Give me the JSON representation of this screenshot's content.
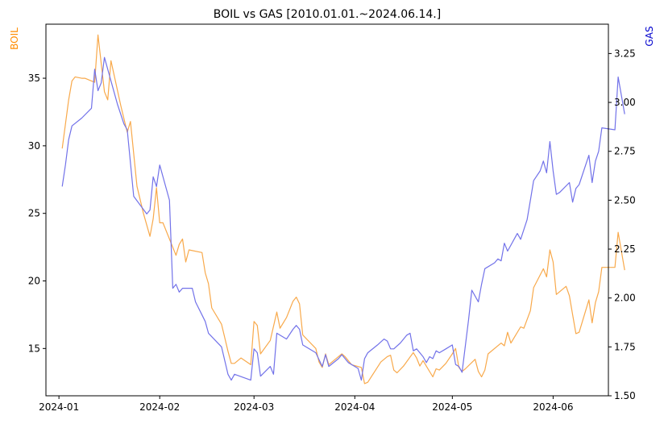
{
  "chart_data": {
    "type": "line",
    "title": "BOIL vs GAS [2010.01.01.~2024.06.14.]",
    "xlabel": "",
    "x_ticks": [
      "2024-01",
      "2024-02",
      "2024-03",
      "2024-04",
      "2024-05",
      "2024-06"
    ],
    "xlim": [
      "2023-12-28",
      "2024-06-18"
    ],
    "left_axis": {
      "label": "BOIL",
      "color": "#ff8c00",
      "ylim": [
        11.5,
        39.0
      ],
      "ticks": [
        15,
        20,
        25,
        30,
        35
      ]
    },
    "right_axis": {
      "label": "GAS",
      "color": "#0000cd",
      "ylim": [
        1.5,
        3.4
      ],
      "ticks": [
        "1.50",
        "1.75",
        "2.00",
        "2.25",
        "2.50",
        "2.75",
        "3.00",
        "3.25"
      ]
    },
    "series": [
      {
        "name": "BOIL",
        "axis": "left",
        "color": "#f8a94b",
        "points": [
          [
            "2024-01-02",
            29.8
          ],
          [
            "2024-01-03",
            31.6
          ],
          [
            "2024-01-04",
            33.4
          ],
          [
            "2024-01-05",
            34.8
          ],
          [
            "2024-01-06",
            35.1
          ],
          [
            "2024-01-08",
            35.0
          ],
          [
            "2024-01-09",
            35.0
          ],
          [
            "2024-01-11",
            34.8
          ],
          [
            "2024-01-12",
            34.7
          ],
          [
            "2024-01-13",
            38.2
          ],
          [
            "2024-01-15",
            34.0
          ],
          [
            "2024-01-16",
            33.4
          ],
          [
            "2024-01-17",
            36.3
          ],
          [
            "2024-01-20",
            33.0
          ],
          [
            "2024-01-22",
            31.0
          ],
          [
            "2024-01-23",
            31.8
          ],
          [
            "2024-01-25",
            27.0
          ],
          [
            "2024-01-27",
            25.0
          ],
          [
            "2024-01-29",
            23.3
          ],
          [
            "2024-01-30",
            24.6
          ],
          [
            "2024-01-31",
            26.9
          ],
          [
            "2024-02-01",
            24.3
          ],
          [
            "2024-02-02",
            24.3
          ],
          [
            "2024-02-06",
            21.9
          ],
          [
            "2024-02-07",
            22.7
          ],
          [
            "2024-02-08",
            23.1
          ],
          [
            "2024-02-09",
            21.4
          ],
          [
            "2024-02-10",
            22.3
          ],
          [
            "2024-02-14",
            22.1
          ],
          [
            "2024-02-15",
            20.6
          ],
          [
            "2024-02-16",
            19.8
          ],
          [
            "2024-02-17",
            18.0
          ],
          [
            "2024-02-20",
            16.8
          ],
          [
            "2024-02-21",
            15.8
          ],
          [
            "2024-02-22",
            14.8
          ],
          [
            "2024-02-23",
            13.9
          ],
          [
            "2024-02-24",
            13.9
          ],
          [
            "2024-02-26",
            14.3
          ],
          [
            "2024-02-29",
            13.8
          ],
          [
            "2024-03-01",
            17.0
          ],
          [
            "2024-03-02",
            16.7
          ],
          [
            "2024-03-03",
            14.6
          ],
          [
            "2024-03-06",
            15.6
          ],
          [
            "2024-03-08",
            17.7
          ],
          [
            "2024-03-09",
            16.5
          ],
          [
            "2024-03-11",
            17.3
          ],
          [
            "2024-03-13",
            18.5
          ],
          [
            "2024-03-14",
            18.8
          ],
          [
            "2024-03-15",
            18.3
          ],
          [
            "2024-03-16",
            16.0
          ],
          [
            "2024-03-20",
            15.0
          ],
          [
            "2024-03-21",
            14.0
          ],
          [
            "2024-03-22",
            13.6
          ],
          [
            "2024-03-23",
            14.6
          ],
          [
            "2024-03-24",
            13.8
          ],
          [
            "2024-03-26",
            14.2
          ],
          [
            "2024-03-28",
            14.6
          ],
          [
            "2024-03-29",
            14.4
          ],
          [
            "2024-03-30",
            14.1
          ],
          [
            "2024-03-31",
            13.8
          ],
          [
            "2024-04-03",
            13.6
          ],
          [
            "2024-04-04",
            12.4
          ],
          [
            "2024-04-05",
            12.5
          ],
          [
            "2024-04-09",
            14.0
          ],
          [
            "2024-04-11",
            14.4
          ],
          [
            "2024-04-12",
            14.5
          ],
          [
            "2024-04-13",
            13.4
          ],
          [
            "2024-04-14",
            13.2
          ],
          [
            "2024-04-16",
            13.7
          ],
          [
            "2024-04-19",
            14.7
          ],
          [
            "2024-04-20",
            14.3
          ],
          [
            "2024-04-21",
            13.7
          ],
          [
            "2024-04-22",
            14.1
          ],
          [
            "2024-04-25",
            12.9
          ],
          [
            "2024-04-26",
            13.5
          ],
          [
            "2024-04-27",
            13.4
          ],
          [
            "2024-04-29",
            13.9
          ],
          [
            "2024-05-01",
            14.6
          ],
          [
            "2024-05-02",
            15.0
          ],
          [
            "2024-05-03",
            13.6
          ],
          [
            "2024-05-04",
            13.3
          ],
          [
            "2024-05-05",
            13.5
          ],
          [
            "2024-05-08",
            14.2
          ],
          [
            "2024-05-09",
            13.3
          ],
          [
            "2024-05-10",
            12.9
          ],
          [
            "2024-05-11",
            13.4
          ],
          [
            "2024-05-12",
            14.6
          ],
          [
            "2024-05-16",
            15.4
          ],
          [
            "2024-05-17",
            15.2
          ],
          [
            "2024-05-18",
            16.2
          ],
          [
            "2024-05-19",
            15.4
          ],
          [
            "2024-05-22",
            16.6
          ],
          [
            "2024-05-23",
            16.5
          ],
          [
            "2024-05-25",
            17.8
          ],
          [
            "2024-05-26",
            19.5
          ],
          [
            "2024-05-29",
            20.9
          ],
          [
            "2024-05-30",
            20.3
          ],
          [
            "2024-05-31",
            22.3
          ],
          [
            "2024-06-01",
            21.4
          ],
          [
            "2024-06-02",
            19.0
          ],
          [
            "2024-06-05",
            19.6
          ],
          [
            "2024-06-06",
            18.9
          ],
          [
            "2024-06-07",
            17.5
          ],
          [
            "2024-06-08",
            16.1
          ],
          [
            "2024-06-09",
            16.2
          ],
          [
            "2024-06-12",
            18.6
          ],
          [
            "2024-06-13",
            16.9
          ],
          [
            "2024-06-14",
            18.4
          ],
          [
            "2024-06-15",
            19.2
          ],
          [
            "2024-06-16",
            21.0
          ],
          [
            "2024-06-20",
            21.0
          ],
          [
            "2024-06-21",
            23.6
          ],
          [
            "2024-06-23",
            20.8
          ]
        ]
      },
      {
        "name": "GAS",
        "axis": "right",
        "color": "#7272e9",
        "points": [
          [
            "2024-01-02",
            2.57
          ],
          [
            "2024-01-03",
            2.68
          ],
          [
            "2024-01-04",
            2.81
          ],
          [
            "2024-01-05",
            2.88
          ],
          [
            "2024-01-08",
            2.92
          ],
          [
            "2024-01-11",
            2.97
          ],
          [
            "2024-01-12",
            3.17
          ],
          [
            "2024-01-13",
            3.06
          ],
          [
            "2024-01-14",
            3.1
          ],
          [
            "2024-01-15",
            3.23
          ],
          [
            "2024-01-19",
            2.99
          ],
          [
            "2024-01-21",
            2.89
          ],
          [
            "2024-01-22",
            2.86
          ],
          [
            "2024-01-24",
            2.52
          ],
          [
            "2024-01-28",
            2.43
          ],
          [
            "2024-01-29",
            2.45
          ],
          [
            "2024-01-30",
            2.62
          ],
          [
            "2024-01-31",
            2.57
          ],
          [
            "2024-02-01",
            2.68
          ],
          [
            "2024-02-04",
            2.5
          ],
          [
            "2024-02-05",
            2.05
          ],
          [
            "2024-02-06",
            2.07
          ],
          [
            "2024-02-07",
            2.03
          ],
          [
            "2024-02-08",
            2.05
          ],
          [
            "2024-02-11",
            2.05
          ],
          [
            "2024-02-12",
            1.98
          ],
          [
            "2024-02-15",
            1.88
          ],
          [
            "2024-02-16",
            1.82
          ],
          [
            "2024-02-20",
            1.75
          ],
          [
            "2024-02-22",
            1.61
          ],
          [
            "2024-02-23",
            1.58
          ],
          [
            "2024-02-24",
            1.61
          ],
          [
            "2024-02-29",
            1.58
          ],
          [
            "2024-03-01",
            1.74
          ],
          [
            "2024-03-02",
            1.72
          ],
          [
            "2024-03-03",
            1.6
          ],
          [
            "2024-03-06",
            1.65
          ],
          [
            "2024-03-07",
            1.61
          ],
          [
            "2024-03-08",
            1.82
          ],
          [
            "2024-03-11",
            1.79
          ],
          [
            "2024-03-13",
            1.84
          ],
          [
            "2024-03-14",
            1.86
          ],
          [
            "2024-03-15",
            1.84
          ],
          [
            "2024-03-16",
            1.76
          ],
          [
            "2024-03-20",
            1.72
          ],
          [
            "2024-03-22",
            1.65
          ],
          [
            "2024-03-23",
            1.71
          ],
          [
            "2024-03-24",
            1.65
          ],
          [
            "2024-03-27",
            1.69
          ],
          [
            "2024-03-28",
            1.71
          ],
          [
            "2024-03-30",
            1.67
          ],
          [
            "2024-04-02",
            1.64
          ],
          [
            "2024-04-03",
            1.58
          ],
          [
            "2024-04-04",
            1.69
          ],
          [
            "2024-04-05",
            1.72
          ],
          [
            "2024-04-08",
            1.76
          ],
          [
            "2024-04-10",
            1.79
          ],
          [
            "2024-04-11",
            1.78
          ],
          [
            "2024-04-12",
            1.74
          ],
          [
            "2024-04-13",
            1.74
          ],
          [
            "2024-04-15",
            1.77
          ],
          [
            "2024-04-17",
            1.81
          ],
          [
            "2024-04-18",
            1.82
          ],
          [
            "2024-04-19",
            1.73
          ],
          [
            "2024-04-20",
            1.74
          ],
          [
            "2024-04-22",
            1.7
          ],
          [
            "2024-04-23",
            1.67
          ],
          [
            "2024-04-24",
            1.7
          ],
          [
            "2024-04-25",
            1.69
          ],
          [
            "2024-04-26",
            1.73
          ],
          [
            "2024-04-27",
            1.72
          ],
          [
            "2024-04-29",
            1.74
          ],
          [
            "2024-05-01",
            1.76
          ],
          [
            "2024-05-02",
            1.66
          ],
          [
            "2024-05-03",
            1.65
          ],
          [
            "2024-05-04",
            1.62
          ],
          [
            "2024-05-06",
            1.89
          ],
          [
            "2024-05-07",
            2.04
          ],
          [
            "2024-05-08",
            2.01
          ],
          [
            "2024-05-09",
            1.98
          ],
          [
            "2024-05-10",
            2.07
          ],
          [
            "2024-05-11",
            2.15
          ],
          [
            "2024-05-14",
            2.18
          ],
          [
            "2024-05-15",
            2.2
          ],
          [
            "2024-05-16",
            2.19
          ],
          [
            "2024-05-17",
            2.28
          ],
          [
            "2024-05-18",
            2.24
          ],
          [
            "2024-05-21",
            2.33
          ],
          [
            "2024-05-22",
            2.3
          ],
          [
            "2024-05-24",
            2.4
          ],
          [
            "2024-05-25",
            2.5
          ],
          [
            "2024-05-26",
            2.6
          ],
          [
            "2024-05-28",
            2.65
          ],
          [
            "2024-05-29",
            2.7
          ],
          [
            "2024-05-30",
            2.64
          ],
          [
            "2024-05-31",
            2.8
          ],
          [
            "2024-06-01",
            2.65
          ],
          [
            "2024-06-02",
            2.53
          ],
          [
            "2024-06-03",
            2.54
          ],
          [
            "2024-06-06",
            2.59
          ],
          [
            "2024-06-07",
            2.49
          ],
          [
            "2024-06-08",
            2.56
          ],
          [
            "2024-06-09",
            2.58
          ],
          [
            "2024-06-12",
            2.73
          ],
          [
            "2024-06-13",
            2.59
          ],
          [
            "2024-06-14",
            2.7
          ],
          [
            "2024-06-15",
            2.75
          ],
          [
            "2024-06-16",
            2.87
          ],
          [
            "2024-06-20",
            2.86
          ],
          [
            "2024-06-21",
            3.13
          ],
          [
            "2024-06-23",
            2.94
          ]
        ]
      }
    ]
  }
}
